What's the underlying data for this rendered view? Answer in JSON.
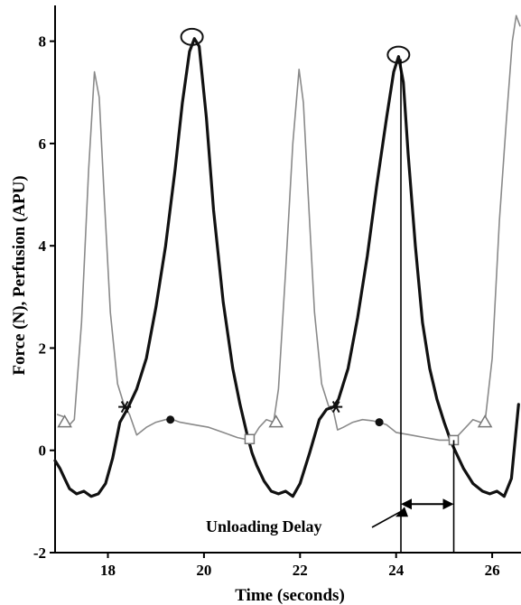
{
  "chart_data": {
    "type": "line",
    "xlabel": "Time (seconds)",
    "ylabel": "Force (N), Perfusion (APU)",
    "xlim": [
      16.9,
      26.6
    ],
    "ylim": [
      -2,
      8.7
    ],
    "x_ticks": [
      18,
      20,
      22,
      24,
      26
    ],
    "y_ticks": [
      -2,
      0,
      2,
      4,
      6,
      8
    ],
    "x_tick_labels": [
      "18",
      "20",
      "22",
      "24",
      "26"
    ],
    "y_tick_labels": [
      "-2",
      "0",
      "2",
      "4",
      "6",
      "8"
    ],
    "grid": false,
    "legend": "none",
    "series": [
      {
        "color": "#8a8a8a",
        "style": "thin",
        "x": [
          16.95,
          17.1,
          17.2,
          17.3,
          17.45,
          17.6,
          17.72,
          17.82,
          17.92,
          18.05,
          18.2,
          18.35,
          18.45,
          18.6,
          18.8,
          19.0,
          19.2,
          19.3,
          19.5,
          19.8,
          20.1,
          20.4,
          20.7,
          20.95,
          21.05,
          21.15,
          21.3,
          21.45,
          21.55,
          21.7,
          21.85,
          21.98,
          22.07,
          22.17,
          22.3,
          22.45,
          22.6,
          22.7,
          22.78,
          22.9,
          23.1,
          23.3,
          23.5,
          23.65,
          23.8,
          24.0,
          24.3,
          24.6,
          24.9,
          25.2,
          25.35,
          25.5,
          25.6,
          25.75,
          25.85,
          26.0,
          26.15,
          26.3,
          26.42,
          26.5,
          26.58
        ],
        "y": [
          0.7,
          0.65,
          0.5,
          0.6,
          2.5,
          5.5,
          7.4,
          6.9,
          5.0,
          2.7,
          1.3,
          0.85,
          0.7,
          0.3,
          0.45,
          0.55,
          0.6,
          0.62,
          0.55,
          0.5,
          0.45,
          0.35,
          0.25,
          0.2,
          0.3,
          0.45,
          0.6,
          0.55,
          1.2,
          3.5,
          6.0,
          7.45,
          6.8,
          5.0,
          2.7,
          1.3,
          0.85,
          0.75,
          0.4,
          0.45,
          0.55,
          0.6,
          0.58,
          0.55,
          0.5,
          0.35,
          0.3,
          0.25,
          0.2,
          0.2,
          0.35,
          0.5,
          0.6,
          0.55,
          0.55,
          1.8,
          4.5,
          6.5,
          8.0,
          8.5,
          8.3
        ],
        "markers": [
          {
            "symbol": "triangle",
            "x": 17.1,
            "y": 0.55
          },
          {
            "symbol": "asterisk",
            "x": 18.35,
            "y": 0.85
          },
          {
            "symbol": "dot",
            "x": 19.3,
            "y": 0.6
          },
          {
            "symbol": "square",
            "x": 20.95,
            "y": 0.22
          },
          {
            "symbol": "triangle",
            "x": 21.5,
            "y": 0.55
          },
          {
            "symbol": "asterisk",
            "x": 22.75,
            "y": 0.85
          },
          {
            "symbol": "dot",
            "x": 23.65,
            "y": 0.55
          },
          {
            "symbol": "square",
            "x": 25.2,
            "y": 0.2
          },
          {
            "symbol": "triangle",
            "x": 25.85,
            "y": 0.55
          }
        ]
      },
      {
        "color": "#111111",
        "style": "thick",
        "x": [
          16.9,
          17.0,
          17.1,
          17.2,
          17.35,
          17.5,
          17.65,
          17.8,
          17.95,
          18.1,
          18.25,
          18.4,
          18.6,
          18.8,
          19.0,
          19.2,
          19.4,
          19.55,
          19.7,
          19.8,
          19.9,
          20.05,
          20.2,
          20.4,
          20.6,
          20.75,
          20.9,
          21.0,
          21.1,
          21.25,
          21.4,
          21.55,
          21.7,
          21.85,
          22.0,
          22.2,
          22.4,
          22.55,
          22.7,
          22.8,
          23.0,
          23.2,
          23.4,
          23.6,
          23.8,
          23.95,
          24.05,
          24.15,
          24.25,
          24.4,
          24.55,
          24.7,
          24.85,
          25.0,
          25.15,
          25.25,
          25.4,
          25.6,
          25.8,
          25.95,
          26.1,
          26.25,
          26.4,
          26.55
        ],
        "y": [
          -0.2,
          -0.35,
          -0.55,
          -0.75,
          -0.85,
          -0.8,
          -0.9,
          -0.85,
          -0.65,
          -0.15,
          0.55,
          0.8,
          1.2,
          1.8,
          2.8,
          4.0,
          5.5,
          6.8,
          7.8,
          8.05,
          7.9,
          6.5,
          4.7,
          2.9,
          1.6,
          0.9,
          0.3,
          -0.05,
          -0.3,
          -0.6,
          -0.8,
          -0.85,
          -0.8,
          -0.9,
          -0.65,
          -0.05,
          0.6,
          0.8,
          0.85,
          1.0,
          1.6,
          2.6,
          3.8,
          5.2,
          6.5,
          7.4,
          7.7,
          7.2,
          5.8,
          4.0,
          2.5,
          1.6,
          1.0,
          0.55,
          0.15,
          -0.05,
          -0.35,
          -0.65,
          -0.8,
          -0.85,
          -0.8,
          -0.9,
          -0.55,
          0.9
        ],
        "markers": [
          {
            "symbol": "circle",
            "x": 19.75,
            "y": 8.05
          },
          {
            "symbol": "circle",
            "x": 24.05,
            "y": 7.7
          }
        ]
      }
    ],
    "annotations": {
      "unloading_delay_label": "Unloading Delay",
      "vline_1_x": 24.1,
      "vline_2_x": 25.2,
      "arrow_y": -1.05,
      "vline_1_top": 7.65,
      "vline_2_top": 0.2
    }
  }
}
